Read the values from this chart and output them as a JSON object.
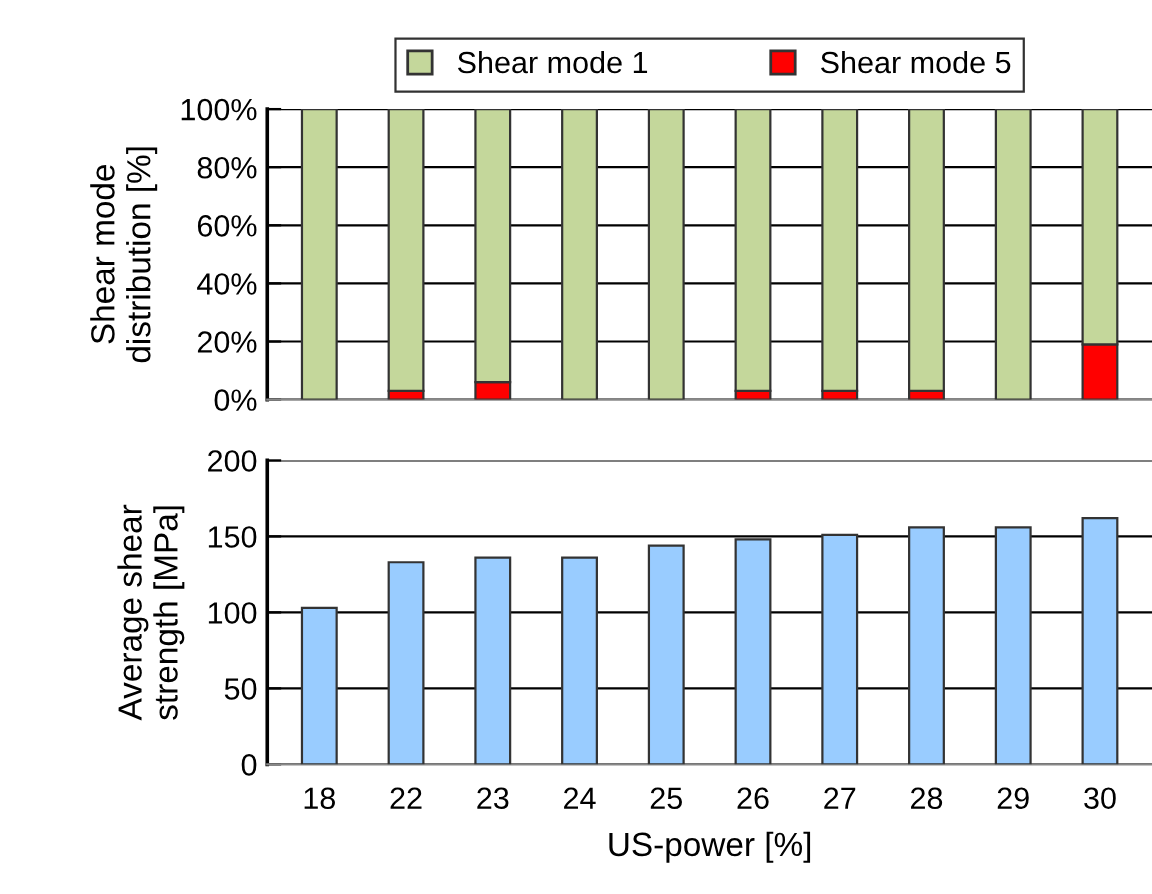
{
  "chart_data": [
    {
      "type": "bar",
      "stacked": true,
      "ylabel": "Shear mode\ndistribution [%]",
      "categories": [
        "18",
        "22",
        "23",
        "24",
        "25",
        "26",
        "27",
        "28",
        "29",
        "30"
      ],
      "series": [
        {
          "name": "Shear mode 5",
          "color": "#ff0000",
          "values": [
            0,
            3,
            6,
            0,
            0,
            3,
            3,
            3,
            0,
            19
          ]
        },
        {
          "name": "Shear mode 1",
          "color": "#c4d79b",
          "values": [
            100,
            97,
            94,
            100,
            100,
            97,
            97,
            97,
            100,
            81
          ]
        }
      ],
      "ylim": [
        0,
        100
      ],
      "yticks": [
        {
          "value": 0,
          "label": "0%"
        },
        {
          "value": 20,
          "label": "20%"
        },
        {
          "value": 40,
          "label": "40%"
        },
        {
          "value": 60,
          "label": "60%"
        },
        {
          "value": 80,
          "label": "80%"
        },
        {
          "value": 100,
          "label": "100%"
        }
      ],
      "grid": "y",
      "legend": "top",
      "tick_labels": "y"
    },
    {
      "type": "bar",
      "ylabel": "Average shear\nstrength [MPa]",
      "xlabel": "US-power [%]",
      "categories": [
        "18",
        "22",
        "23",
        "24",
        "25",
        "26",
        "27",
        "28",
        "29",
        "30"
      ],
      "values": [
        103,
        133,
        136,
        136,
        144,
        148,
        151,
        156,
        156,
        162
      ],
      "color": "#99ccff",
      "ylim": [
        0,
        200
      ],
      "yticks": [
        0,
        50,
        100,
        150,
        200
      ],
      "grid": "y"
    }
  ]
}
